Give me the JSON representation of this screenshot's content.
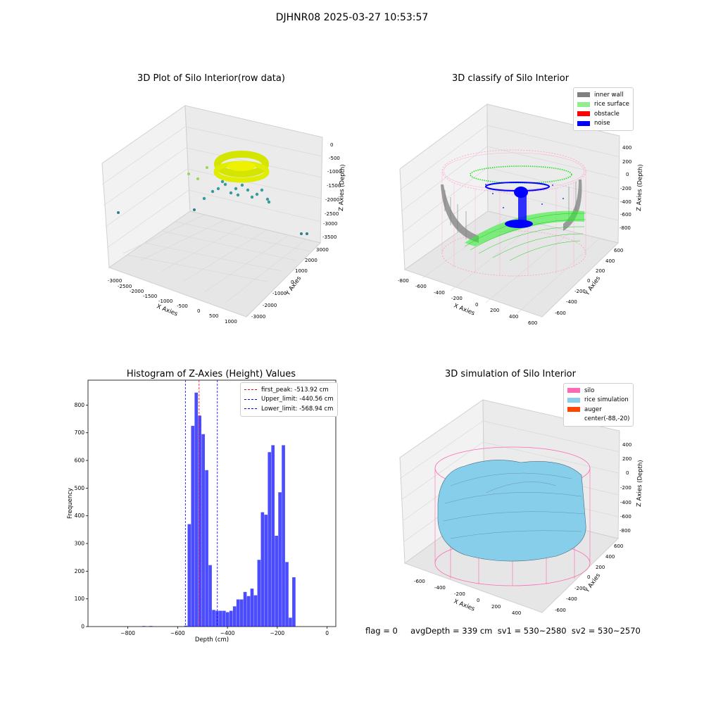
{
  "figure": {
    "suptitle": "DJHNR08 2025-03-27 10:53:57",
    "footer": "flag = 0     avgDepth = 339 cm  sv1 = 530~2580  sv2 = 530~2570"
  },
  "panels": {
    "raw": {
      "title": "3D Plot of Silo Interior(row data)",
      "xlabel": "X Axies",
      "ylabel": "Y Axies",
      "zlabel": "Z Axies (Depth)",
      "xticks": [
        "-3000",
        "-2500",
        "-2000",
        "-1500",
        "-1000",
        "-500",
        "0",
        "500",
        "1000"
      ],
      "yticks": [
        "3000",
        "2000",
        "1000",
        "0",
        "-1000",
        "-2000",
        "-3000"
      ],
      "zticks": [
        "0",
        "-500",
        "-1000",
        "-1500",
        "-2000",
        "-2500",
        "-3000",
        "-3500"
      ]
    },
    "classify": {
      "title": "3D classify of Silo Interior",
      "xlabel": "X Axies",
      "ylabel": "Y Axies",
      "zlabel": "Z Axies (Depth)",
      "xticks": [
        "-800",
        "-600",
        "-400",
        "-200",
        "0",
        "200",
        "400",
        "600"
      ],
      "yticks": [
        "600",
        "400",
        "200",
        "0",
        "-200",
        "-400",
        "-600"
      ],
      "zticks": [
        "400",
        "200",
        "0",
        "-200",
        "-400",
        "-600",
        "-800"
      ],
      "legend": [
        {
          "label": "inner wall",
          "color": "#808080"
        },
        {
          "label": "rice surface",
          "color": "#90ee90"
        },
        {
          "label": "obstacle",
          "color": "#ff0000"
        },
        {
          "label": "noise",
          "color": "#0000ff"
        }
      ]
    },
    "simulation": {
      "title": "3D simulation of Silo Interior",
      "xlabel": "X Axies",
      "ylabel": "Y Axies",
      "zlabel": "Z Axies (Depth)",
      "xticks": [
        "-600",
        "-400",
        "-200",
        "0",
        "200",
        "400"
      ],
      "yticks": [
        "600",
        "400",
        "200",
        "0",
        "-200",
        "-400",
        "-600"
      ],
      "zticks": [
        "400",
        "200",
        "0",
        "-200",
        "-400",
        "-600",
        "-800"
      ],
      "legend": [
        {
          "label": "silo",
          "color": "#ff69b4"
        },
        {
          "label": "rice simulation",
          "color": "#87ceeb"
        },
        {
          "label": "auger",
          "color": "#ff4500"
        },
        {
          "label": "center(-88,-20)",
          "color": "#ffffff"
        }
      ]
    }
  },
  "chart_data": {
    "type": "bar",
    "title": "Histogram of Z-Axies (Height) Values",
    "xlabel": "Depth (cm)",
    "ylabel": "Frequency",
    "xlim": [
      -960,
      35
    ],
    "ylim": [
      0,
      890
    ],
    "xticks": [
      -800,
      -600,
      -400,
      -200,
      0
    ],
    "yticks": [
      0,
      100,
      200,
      300,
      400,
      500,
      600,
      700,
      800
    ],
    "bin_width": 14,
    "bar_color": "#0000ff",
    "bins": [
      {
        "x": -742,
        "value": 2
      },
      {
        "x": -714,
        "value": 2
      },
      {
        "x": -574,
        "value": 3
      },
      {
        "x": -560,
        "value": 370
      },
      {
        "x": -546,
        "value": 725
      },
      {
        "x": -532,
        "value": 845
      },
      {
        "x": -518,
        "value": 762
      },
      {
        "x": -504,
        "value": 695
      },
      {
        "x": -490,
        "value": 565
      },
      {
        "x": -476,
        "value": 222
      },
      {
        "x": -462,
        "value": 60
      },
      {
        "x": -448,
        "value": 57
      },
      {
        "x": -434,
        "value": 57
      },
      {
        "x": -420,
        "value": 57
      },
      {
        "x": -406,
        "value": 52
      },
      {
        "x": -392,
        "value": 57
      },
      {
        "x": -378,
        "value": 73
      },
      {
        "x": -364,
        "value": 98
      },
      {
        "x": -350,
        "value": 98
      },
      {
        "x": -336,
        "value": 125
      },
      {
        "x": -322,
        "value": 110
      },
      {
        "x": -308,
        "value": 137
      },
      {
        "x": -294,
        "value": 113
      },
      {
        "x": -280,
        "value": 241
      },
      {
        "x": -266,
        "value": 413
      },
      {
        "x": -252,
        "value": 404
      },
      {
        "x": -238,
        "value": 630
      },
      {
        "x": -224,
        "value": 655
      },
      {
        "x": -210,
        "value": 328
      },
      {
        "x": -196,
        "value": 485
      },
      {
        "x": -182,
        "value": 655
      },
      {
        "x": -168,
        "value": 233
      },
      {
        "x": -154,
        "value": 32
      },
      {
        "x": -140,
        "value": 178
      }
    ],
    "vlines": [
      {
        "label": "first_peak: -513.92 cm",
        "x": -513.92,
        "color": "#ff0000"
      },
      {
        "label": "Upper_limit: -440.56 cm",
        "x": -440.56,
        "color": "#0000ff"
      },
      {
        "label": "Lower_limit: -568.94 cm",
        "x": -568.94,
        "color": "#0000ff"
      }
    ]
  }
}
